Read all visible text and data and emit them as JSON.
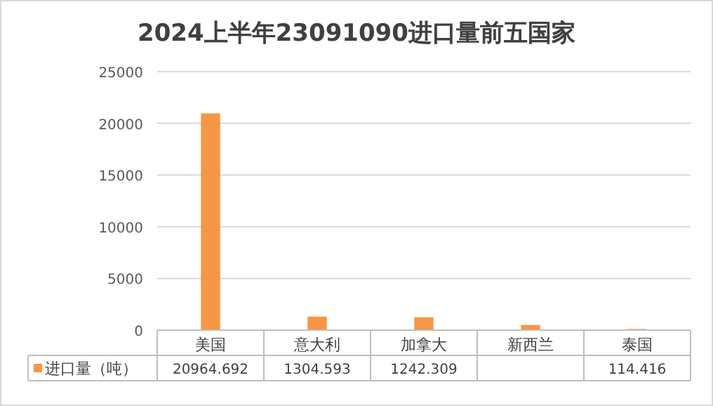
{
  "chart_data": {
    "type": "bar",
    "title": "2024上半年23091090进口量前五国家",
    "categories": [
      "美国",
      "意大利",
      "加拿大",
      "新西兰",
      "泰国"
    ],
    "series": [
      {
        "name": "进口量（吨）",
        "color": "#f79646",
        "values": [
          20964.692,
          1304.593,
          1242.309,
          500,
          114.416
        ],
        "value_labels": [
          "20964.692",
          "1304.593",
          "1242.309",
          null,
          "114.416"
        ]
      }
    ],
    "ylim": [
      0,
      25000
    ],
    "yticks": [
      0,
      5000,
      10000,
      15000,
      20000,
      25000
    ],
    "grid": "y",
    "legend": "bottom"
  }
}
